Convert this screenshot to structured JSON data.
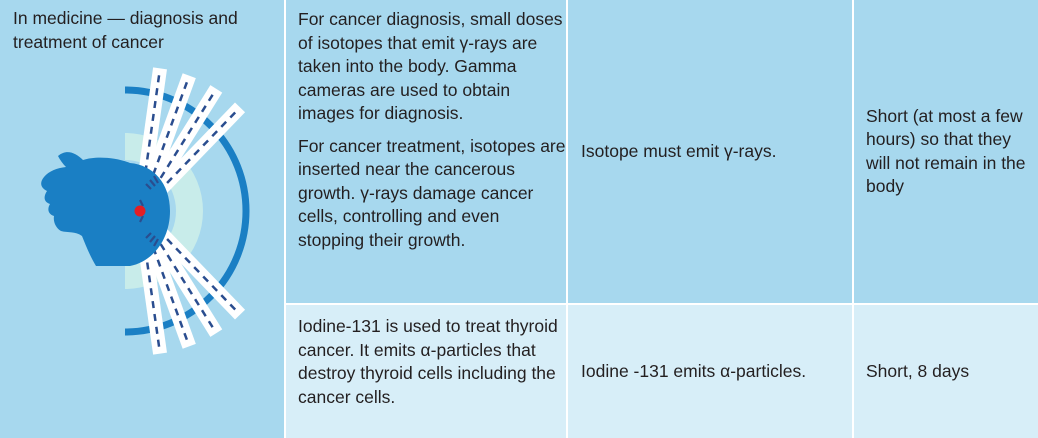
{
  "application": "In medicine — diagnosis and treatment of cancer",
  "row1": {
    "description_p1": "For cancer diagnosis, small doses of isotopes that emit γ-rays are taken into the body. Gamma cameras are used to obtain images for diagnosis.",
    "description_p2": "For cancer treatment, isotopes are inserted near the cancerous growth. γ-rays damage cancer cells, controlling and even stopping their growth.",
    "requirement": "Isotope must emit γ-rays.",
    "half_life": "Short (at most a few hours) so that they will not remain in the body"
  },
  "row2": {
    "description": "Iodine-131 is used to treat thyroid cancer. It emits α-particles that destroy thyroid cells including the cancer cells.",
    "requirement": "Iodine -131 emits α-particles.",
    "half_life": "Short, 8 days"
  },
  "colors": {
    "row_dark": "#a7d8ee",
    "row_light": "#d7eef8",
    "head_blue": "#1a7fc4",
    "beam_blue": "#2a4d8f",
    "tumor_red": "#e31e24"
  },
  "illustration": {
    "icons": [
      "head-icon",
      "gamma-beam-icon",
      "detector-ring-icon",
      "tumor-icon"
    ]
  }
}
